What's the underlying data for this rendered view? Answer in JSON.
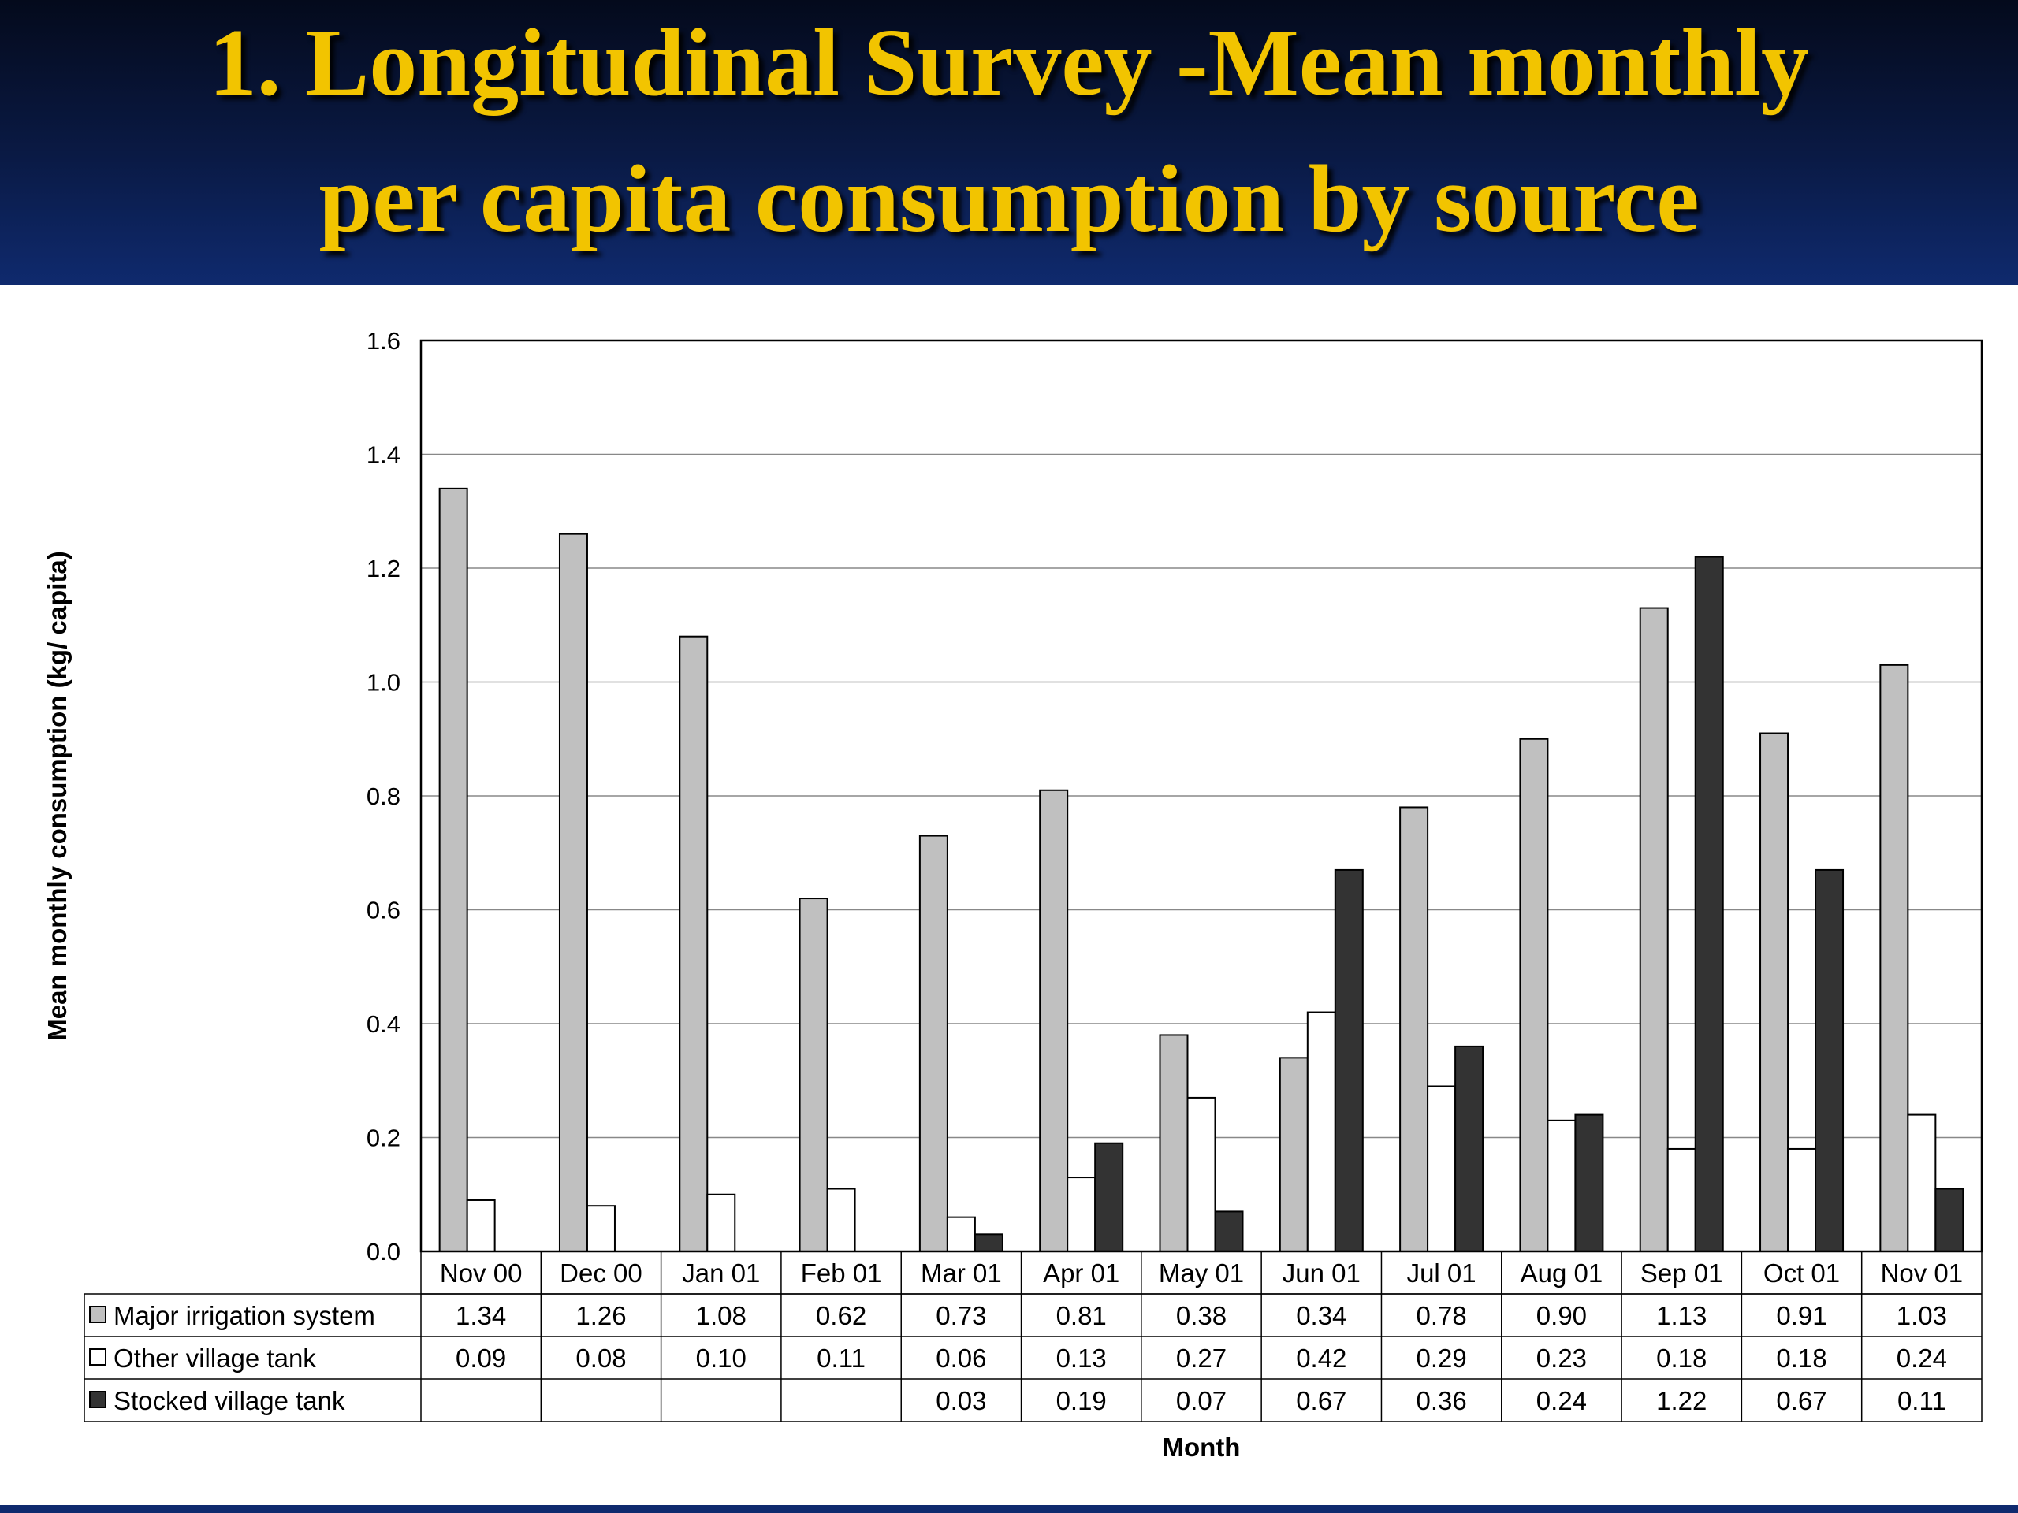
{
  "slide": {
    "title_line1": "1. Longitudinal Survey -Mean monthly",
    "title_line2": "per capita consumption by source"
  },
  "chart_data": {
    "type": "bar",
    "xlabel": "Month",
    "ylabel": "Mean monthly consumption (kg/ capita)",
    "ylim": [
      0,
      1.6
    ],
    "yticks": [
      "0.0",
      "0.2",
      "0.4",
      "0.6",
      "0.8",
      "1.0",
      "1.2",
      "1.4",
      "1.6"
    ],
    "grid": true,
    "legend_placement": "data table below plot",
    "categories": [
      "Nov 00",
      "Dec 00",
      "Jan 01",
      "Feb 01",
      "Mar 01",
      "Apr 01",
      "May 01",
      "Jun 01",
      "Jul 01",
      "Aug 01",
      "Sep 01",
      "Oct 01",
      "Nov 01"
    ],
    "series": [
      {
        "name": "Major irrigation system",
        "color": "#c0c0c0",
        "values": [
          1.34,
          1.26,
          1.08,
          0.62,
          0.73,
          0.81,
          0.38,
          0.34,
          0.78,
          0.9,
          1.13,
          0.91,
          1.03
        ],
        "labels": [
          "1.34",
          "1.26",
          "1.08",
          "0.62",
          "0.73",
          "0.81",
          "0.38",
          "0.34",
          "0.78",
          "0.90",
          "1.13",
          "0.91",
          "1.03"
        ]
      },
      {
        "name": "Other village tank",
        "color": "#ffffff",
        "values": [
          0.09,
          0.08,
          0.1,
          0.11,
          0.06,
          0.13,
          0.27,
          0.42,
          0.29,
          0.23,
          0.18,
          0.18,
          0.24
        ],
        "labels": [
          "0.09",
          "0.08",
          "0.10",
          "0.11",
          "0.06",
          "0.13",
          "0.27",
          "0.42",
          "0.29",
          "0.23",
          "0.18",
          "0.18",
          "0.24"
        ]
      },
      {
        "name": "Stocked village tank",
        "color": "#333333",
        "values": [
          null,
          null,
          null,
          null,
          0.03,
          0.19,
          0.07,
          0.67,
          0.36,
          0.24,
          1.22,
          0.67,
          0.11
        ],
        "labels": [
          "",
          "",
          "",
          "",
          "0.03",
          "0.19",
          "0.07",
          "0.67",
          "0.36",
          "0.24",
          "1.22",
          "0.67",
          "0.11"
        ]
      }
    ]
  }
}
